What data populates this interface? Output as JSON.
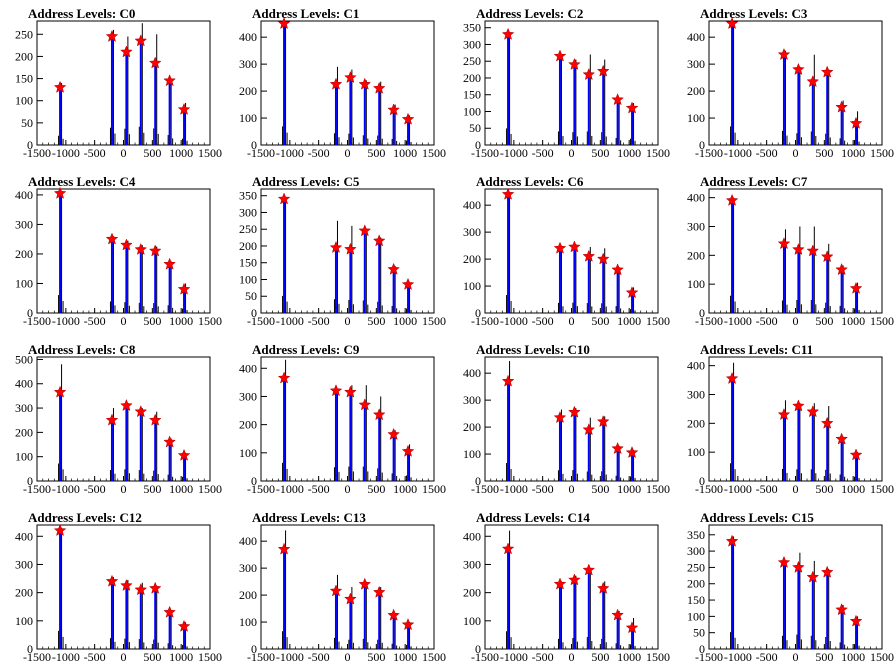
{
  "colors": {
    "axis": "#000000",
    "histogram_outer": "#000000",
    "histogram_inner": "#0000ff",
    "marker": "#ff0000",
    "background": "#ffffff"
  },
  "marker_shape": "red-star",
  "chart_data": [
    {
      "type": "bar",
      "title": "Address Levels: C0",
      "xlim": [
        -1500,
        1500
      ],
      "ylim": [
        0,
        280
      ],
      "yticks": [
        0,
        50,
        100,
        150,
        200,
        250
      ],
      "xticks": [
        "-1500",
        "-1000",
        "-500",
        "0",
        "500",
        "1000",
        "1500"
      ],
      "peaks": [
        {
          "x": -1100,
          "outer": 140,
          "inner": 140,
          "star": 130
        },
        {
          "x": -200,
          "outer": 260,
          "inner": 250,
          "star": 245
        },
        {
          "x": 50,
          "outer": 245,
          "inner": 220,
          "star": 210
        },
        {
          "x": 300,
          "outer": 275,
          "inner": 240,
          "star": 235
        },
        {
          "x": 550,
          "outer": 250,
          "inner": 190,
          "star": 185
        },
        {
          "x": 800,
          "outer": 150,
          "inner": 150,
          "star": 145
        },
        {
          "x": 1050,
          "outer": 95,
          "inner": 85,
          "star": 80
        }
      ]
    },
    {
      "type": "bar",
      "title": "Address Levels: C1",
      "xlim": [
        -1500,
        1500
      ],
      "ylim": [
        0,
        460
      ],
      "yticks": [
        0,
        100,
        200,
        300,
        400
      ],
      "xticks": [
        "-1500",
        "-1000",
        "-500",
        "0",
        "500",
        "1000",
        "1500"
      ],
      "peaks": [
        {
          "x": -1100,
          "outer": 460,
          "inner": 450,
          "star": 450
        },
        {
          "x": -200,
          "outer": 290,
          "inner": 230,
          "star": 225
        },
        {
          "x": 50,
          "outer": 280,
          "inner": 255,
          "star": 250
        },
        {
          "x": 300,
          "outer": 240,
          "inner": 230,
          "star": 225
        },
        {
          "x": 550,
          "outer": 235,
          "inner": 215,
          "star": 210
        },
        {
          "x": 800,
          "outer": 150,
          "inner": 135,
          "star": 130
        },
        {
          "x": 1050,
          "outer": 110,
          "inner": 100,
          "star": 95
        }
      ]
    },
    {
      "type": "bar",
      "title": "Address Levels: C2",
      "xlim": [
        -1500,
        1500
      ],
      "ylim": [
        0,
        370
      ],
      "yticks": [
        0,
        50,
        100,
        150,
        200,
        250,
        300,
        350
      ],
      "xticks": [
        "-1500",
        "-1000",
        "-500",
        "0",
        "500",
        "1000",
        "1500"
      ],
      "peaks": [
        {
          "x": -1100,
          "outer": 330,
          "inner": 330,
          "star": 330
        },
        {
          "x": -200,
          "outer": 270,
          "inner": 265,
          "star": 265
        },
        {
          "x": 50,
          "outer": 255,
          "inner": 245,
          "star": 240
        },
        {
          "x": 300,
          "outer": 270,
          "inner": 215,
          "star": 210
        },
        {
          "x": 550,
          "outer": 255,
          "inner": 225,
          "star": 220
        },
        {
          "x": 800,
          "outer": 140,
          "inner": 135,
          "star": 135
        },
        {
          "x": 1050,
          "outer": 125,
          "inner": 115,
          "star": 110
        }
      ]
    },
    {
      "type": "bar",
      "title": "Address Levels: C3",
      "xlim": [
        -1500,
        1500
      ],
      "ylim": [
        0,
        460
      ],
      "yticks": [
        0,
        100,
        200,
        300,
        400
      ],
      "xticks": [
        "-1500",
        "-1000",
        "-500",
        "0",
        "500",
        "1000",
        "1500"
      ],
      "peaks": [
        {
          "x": -1100,
          "outer": 460,
          "inner": 450,
          "star": 450
        },
        {
          "x": -200,
          "outer": 350,
          "inner": 340,
          "star": 335
        },
        {
          "x": 50,
          "outer": 290,
          "inner": 280,
          "star": 280
        },
        {
          "x": 300,
          "outer": 335,
          "inner": 240,
          "star": 235
        },
        {
          "x": 550,
          "outer": 280,
          "inner": 275,
          "star": 270
        },
        {
          "x": 800,
          "outer": 165,
          "inner": 140,
          "star": 140
        },
        {
          "x": 1050,
          "outer": 125,
          "inner": 85,
          "star": 80
        }
      ]
    },
    {
      "type": "bar",
      "title": "Address Levels: C4",
      "xlim": [
        -1500,
        1500
      ],
      "ylim": [
        0,
        420
      ],
      "yticks": [
        0,
        100,
        200,
        300,
        400
      ],
      "xticks": [
        "-1500",
        "-1000",
        "-500",
        "0",
        "500",
        "1000",
        "1500"
      ],
      "peaks": [
        {
          "x": -1100,
          "outer": 405,
          "inner": 400,
          "star": 405
        },
        {
          "x": -200,
          "outer": 260,
          "inner": 250,
          "star": 250
        },
        {
          "x": 50,
          "outer": 245,
          "inner": 230,
          "star": 230
        },
        {
          "x": 300,
          "outer": 230,
          "inner": 220,
          "star": 215
        },
        {
          "x": 550,
          "outer": 225,
          "inner": 215,
          "star": 210
        },
        {
          "x": 800,
          "outer": 175,
          "inner": 165,
          "star": 165
        },
        {
          "x": 1050,
          "outer": 100,
          "inner": 85,
          "star": 80
        }
      ]
    },
    {
      "type": "bar",
      "title": "Address Levels: C5",
      "xlim": [
        -1500,
        1500
      ],
      "ylim": [
        0,
        370
      ],
      "yticks": [
        0,
        50,
        100,
        150,
        200,
        250,
        300,
        350
      ],
      "xticks": [
        "-1500",
        "-1000",
        "-500",
        "0",
        "500",
        "1000",
        "1500"
      ],
      "peaks": [
        {
          "x": -1100,
          "outer": 340,
          "inner": 340,
          "star": 340
        },
        {
          "x": -200,
          "outer": 275,
          "inner": 200,
          "star": 195
        },
        {
          "x": 50,
          "outer": 260,
          "inner": 195,
          "star": 190
        },
        {
          "x": 300,
          "outer": 250,
          "inner": 250,
          "star": 245
        },
        {
          "x": 550,
          "outer": 225,
          "inner": 220,
          "star": 215
        },
        {
          "x": 800,
          "outer": 140,
          "inner": 135,
          "star": 130
        },
        {
          "x": 1050,
          "outer": 90,
          "inner": 90,
          "star": 85
        }
      ]
    },
    {
      "type": "bar",
      "title": "Address Levels: C6",
      "xlim": [
        -1500,
        1500
      ],
      "ylim": [
        0,
        460
      ],
      "yticks": [
        0,
        100,
        200,
        300,
        400
      ],
      "xticks": [
        "-1500",
        "-1000",
        "-500",
        "0",
        "500",
        "1000",
        "1500"
      ],
      "peaks": [
        {
          "x": -1100,
          "outer": 445,
          "inner": 440,
          "star": 440
        },
        {
          "x": -200,
          "outer": 250,
          "inner": 240,
          "star": 240
        },
        {
          "x": 50,
          "outer": 255,
          "inner": 245,
          "star": 245
        },
        {
          "x": 300,
          "outer": 245,
          "inner": 215,
          "star": 210
        },
        {
          "x": 550,
          "outer": 240,
          "inner": 200,
          "star": 200
        },
        {
          "x": 800,
          "outer": 170,
          "inner": 165,
          "star": 160
        },
        {
          "x": 1050,
          "outer": 95,
          "inner": 80,
          "star": 75
        }
      ]
    },
    {
      "type": "bar",
      "title": "Address Levels: C7",
      "xlim": [
        -1500,
        1500
      ],
      "ylim": [
        0,
        430
      ],
      "yticks": [
        0,
        100,
        200,
        300,
        400
      ],
      "xticks": [
        "-1500",
        "-1000",
        "-500",
        "0",
        "500",
        "1000",
        "1500"
      ],
      "peaks": [
        {
          "x": -1100,
          "outer": 400,
          "inner": 390,
          "star": 390
        },
        {
          "x": -200,
          "outer": 290,
          "inner": 240,
          "star": 240
        },
        {
          "x": 50,
          "outer": 300,
          "inner": 225,
          "star": 220
        },
        {
          "x": 300,
          "outer": 300,
          "inner": 220,
          "star": 215
        },
        {
          "x": 550,
          "outer": 240,
          "inner": 195,
          "star": 195
        },
        {
          "x": 800,
          "outer": 165,
          "inner": 155,
          "star": 150
        },
        {
          "x": 1050,
          "outer": 105,
          "inner": 90,
          "star": 85
        }
      ]
    },
    {
      "type": "bar",
      "title": "Address Levels: C8",
      "xlim": [
        -1500,
        1500
      ],
      "ylim": [
        0,
        510
      ],
      "yticks": [
        0,
        100,
        200,
        300,
        400,
        500
      ],
      "xticks": [
        "-1500",
        "-1000",
        "-500",
        "0",
        "500",
        "1000",
        "1500"
      ],
      "peaks": [
        {
          "x": -1100,
          "outer": 480,
          "inner": 370,
          "star": 365
        },
        {
          "x": -200,
          "outer": 300,
          "inner": 255,
          "star": 250
        },
        {
          "x": 50,
          "outer": 320,
          "inner": 310,
          "star": 310
        },
        {
          "x": 300,
          "outer": 300,
          "inner": 285,
          "star": 285
        },
        {
          "x": 550,
          "outer": 285,
          "inner": 255,
          "star": 250
        },
        {
          "x": 800,
          "outer": 175,
          "inner": 165,
          "star": 160
        },
        {
          "x": 1050,
          "outer": 115,
          "inner": 110,
          "star": 105
        }
      ]
    },
    {
      "type": "bar",
      "title": "Address Levels: C9",
      "xlim": [
        -1500,
        1500
      ],
      "ylim": [
        0,
        440
      ],
      "yticks": [
        0,
        100,
        200,
        300,
        400
      ],
      "xticks": [
        "-1500",
        "-1000",
        "-500",
        "0",
        "500",
        "1000",
        "1500"
      ],
      "peaks": [
        {
          "x": -1100,
          "outer": 430,
          "inner": 370,
          "star": 365
        },
        {
          "x": -200,
          "outer": 325,
          "inner": 320,
          "star": 320
        },
        {
          "x": 50,
          "outer": 340,
          "inner": 320,
          "star": 315
        },
        {
          "x": 300,
          "outer": 340,
          "inner": 275,
          "star": 270
        },
        {
          "x": 550,
          "outer": 300,
          "inner": 240,
          "star": 235
        },
        {
          "x": 800,
          "outer": 180,
          "inner": 170,
          "star": 165
        },
        {
          "x": 1050,
          "outer": 130,
          "inner": 110,
          "star": 105
        }
      ]
    },
    {
      "type": "bar",
      "title": "Address Levels: C10",
      "xlim": [
        -1500,
        1500
      ],
      "ylim": [
        0,
        460
      ],
      "yticks": [
        0,
        100,
        200,
        300,
        400
      ],
      "xticks": [
        "-1500",
        "-1000",
        "-500",
        "0",
        "500",
        "1000",
        "1500"
      ],
      "peaks": [
        {
          "x": -1100,
          "outer": 445,
          "inner": 375,
          "star": 370
        },
        {
          "x": -200,
          "outer": 265,
          "inner": 240,
          "star": 235
        },
        {
          "x": 50,
          "outer": 270,
          "inner": 260,
          "star": 255
        },
        {
          "x": 300,
          "outer": 235,
          "inner": 195,
          "star": 190
        },
        {
          "x": 550,
          "outer": 240,
          "inner": 225,
          "star": 220
        },
        {
          "x": 800,
          "outer": 130,
          "inner": 120,
          "star": 120
        },
        {
          "x": 1050,
          "outer": 115,
          "inner": 110,
          "star": 105
        }
      ]
    },
    {
      "type": "bar",
      "title": "Address Levels: C11",
      "xlim": [
        -1500,
        1500
      ],
      "ylim": [
        0,
        430
      ],
      "yticks": [
        0,
        100,
        200,
        300,
        400
      ],
      "xticks": [
        "-1500",
        "-1000",
        "-500",
        "0",
        "500",
        "1000",
        "1500"
      ],
      "peaks": [
        {
          "x": -1100,
          "outer": 410,
          "inner": 360,
          "star": 355
        },
        {
          "x": -200,
          "outer": 280,
          "inner": 235,
          "star": 230
        },
        {
          "x": 50,
          "outer": 270,
          "inner": 265,
          "star": 260
        },
        {
          "x": 300,
          "outer": 270,
          "inner": 245,
          "star": 240
        },
        {
          "x": 550,
          "outer": 260,
          "inner": 205,
          "star": 200
        },
        {
          "x": 800,
          "outer": 150,
          "inner": 150,
          "star": 145
        },
        {
          "x": 1050,
          "outer": 100,
          "inner": 95,
          "star": 90
        }
      ]
    },
    {
      "type": "bar",
      "title": "Address Levels: C12",
      "xlim": [
        -1500,
        1500
      ],
      "ylim": [
        0,
        440
      ],
      "yticks": [
        0,
        100,
        200,
        300,
        400
      ],
      "xticks": [
        "-1500",
        "-1000",
        "-500",
        "0",
        "500",
        "1000",
        "1500"
      ],
      "peaks": [
        {
          "x": -1100,
          "outer": 430,
          "inner": 425,
          "star": 420
        },
        {
          "x": -200,
          "outer": 255,
          "inner": 245,
          "star": 240
        },
        {
          "x": 50,
          "outer": 245,
          "inner": 230,
          "star": 225
        },
        {
          "x": 300,
          "outer": 235,
          "inner": 215,
          "star": 210
        },
        {
          "x": 550,
          "outer": 225,
          "inner": 220,
          "star": 215
        },
        {
          "x": 800,
          "outer": 135,
          "inner": 130,
          "star": 130
        },
        {
          "x": 1050,
          "outer": 95,
          "inner": 85,
          "star": 80
        }
      ]
    },
    {
      "type": "bar",
      "title": "Address Levels: C13",
      "xlim": [
        -1500,
        1500
      ],
      "ylim": [
        0,
        460
      ],
      "yticks": [
        0,
        100,
        200,
        300,
        400
      ],
      "xticks": [
        "-1500",
        "-1000",
        "-500",
        "0",
        "500",
        "1000",
        "1500"
      ],
      "peaks": [
        {
          "x": -1100,
          "outer": 440,
          "inner": 375,
          "star": 370
        },
        {
          "x": -200,
          "outer": 275,
          "inner": 220,
          "star": 215
        },
        {
          "x": 50,
          "outer": 230,
          "inner": 195,
          "star": 185
        },
        {
          "x": 300,
          "outer": 250,
          "inner": 245,
          "star": 240
        },
        {
          "x": 550,
          "outer": 230,
          "inner": 215,
          "star": 210
        },
        {
          "x": 800,
          "outer": 130,
          "inner": 125,
          "star": 125
        },
        {
          "x": 1050,
          "outer": 100,
          "inner": 95,
          "star": 90
        }
      ]
    },
    {
      "type": "bar",
      "title": "Address Levels: C14",
      "xlim": [
        -1500,
        1500
      ],
      "ylim": [
        0,
        440
      ],
      "yticks": [
        0,
        100,
        200,
        300,
        400
      ],
      "xticks": [
        "-1500",
        "-1000",
        "-500",
        "0",
        "500",
        "1000",
        "1500"
      ],
      "peaks": [
        {
          "x": -1100,
          "outer": 420,
          "inner": 360,
          "star": 355
        },
        {
          "x": -200,
          "outer": 240,
          "inner": 235,
          "star": 230
        },
        {
          "x": 50,
          "outer": 260,
          "inner": 250,
          "star": 245
        },
        {
          "x": 300,
          "outer": 285,
          "inner": 280,
          "star": 280
        },
        {
          "x": 550,
          "outer": 240,
          "inner": 215,
          "star": 215
        },
        {
          "x": 800,
          "outer": 135,
          "inner": 125,
          "star": 120
        },
        {
          "x": 1050,
          "outer": 110,
          "inner": 80,
          "star": 75
        }
      ]
    },
    {
      "type": "bar",
      "title": "Address Levels: C15",
      "xlim": [
        -1500,
        1500
      ],
      "ylim": [
        0,
        380
      ],
      "yticks": [
        0,
        50,
        100,
        150,
        200,
        250,
        300,
        350
      ],
      "xticks": [
        "-1500",
        "-1000",
        "-500",
        "0",
        "500",
        "1000",
        "1500"
      ],
      "peaks": [
        {
          "x": -1100,
          "outer": 345,
          "inner": 330,
          "star": 330
        },
        {
          "x": -200,
          "outer": 270,
          "inner": 265,
          "star": 265
        },
        {
          "x": 50,
          "outer": 295,
          "inner": 250,
          "star": 250
        },
        {
          "x": 300,
          "outer": 270,
          "inner": 225,
          "star": 220
        },
        {
          "x": 550,
          "outer": 245,
          "inner": 240,
          "star": 235
        },
        {
          "x": 800,
          "outer": 135,
          "inner": 125,
          "star": 120
        },
        {
          "x": 1050,
          "outer": 100,
          "inner": 90,
          "star": 85
        }
      ]
    }
  ]
}
